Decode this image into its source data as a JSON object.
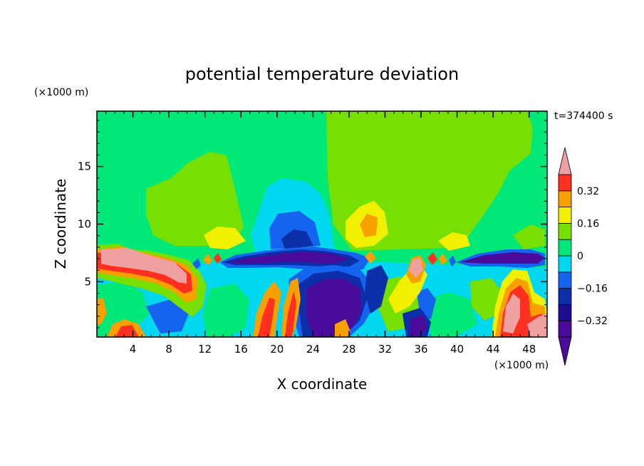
{
  "chart_data": {
    "type": "heatmap",
    "subtype": "filled-contour",
    "title": "potential temperature deviation",
    "time_label": "t=374400 s",
    "xlabel": "X coordinate",
    "ylabel": "Z coordinate",
    "x_unit": "(×1000 m)",
    "y_unit": "(×1000 m)",
    "xlim": [
      0,
      50
    ],
    "ylim": [
      0.2,
      19.8
    ],
    "x_ticks": [
      4,
      8,
      12,
      16,
      20,
      24,
      28,
      32,
      36,
      40,
      44,
      48
    ],
    "y_ticks": [
      5,
      10,
      15
    ],
    "colorbar": {
      "levels": [
        -0.4,
        -0.32,
        -0.24,
        -0.16,
        -0.08,
        0,
        0.08,
        0.16,
        0.24,
        0.32,
        0.4
      ],
      "tick_labels": [
        "0.32",
        "0.16",
        "0",
        "−0.16",
        "−0.32"
      ],
      "tick_values": [
        0.32,
        0.16,
        0,
        -0.16,
        -0.32
      ],
      "colors": [
        "#4a0a9a",
        "#1a0f8f",
        "#0a2fa8",
        "#1464f0",
        "#00d8f0",
        "#00e878",
        "#78e000",
        "#f0f000",
        "#f8a000",
        "#ff3020",
        "#f0a0a0"
      ],
      "extend": "both"
    },
    "features": [
      {
        "kind": "warm",
        "x": [
          0,
          10
        ],
        "z": [
          5.5,
          8
        ],
        "level": 0.4
      },
      {
        "kind": "cold",
        "x": [
          13,
          48
        ],
        "z": [
          6,
          7.5
        ],
        "level": -0.4
      },
      {
        "kind": "cold",
        "x": [
          18,
          28
        ],
        "z": [
          0.2,
          11
        ],
        "level": -0.32
      },
      {
        "kind": "warm",
        "x": [
          43,
          50
        ],
        "z": [
          0.2,
          6
        ],
        "level": 0.4
      }
    ]
  }
}
